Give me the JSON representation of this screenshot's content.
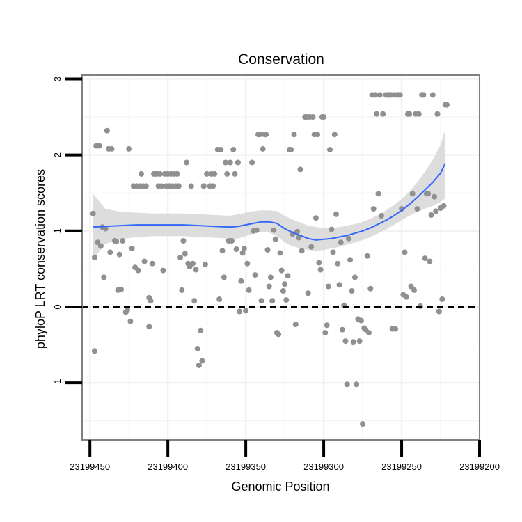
{
  "chart_data": {
    "type": "scatter",
    "title": "Conservation",
    "xlabel": "Genomic Position",
    "ylabel": "phyloP LRT conservation scores",
    "x_reversed": true,
    "xlim": [
      23199200,
      23199455
    ],
    "ylim": [
      -1.75,
      3.05
    ],
    "x_ticks": [
      23199450,
      23199400,
      23199350,
      23199300,
      23199250,
      23199200
    ],
    "x_tick_labels": [
      "23199450",
      "23199400",
      "23199350",
      "23199300",
      "23199250",
      "23199200"
    ],
    "y_ticks": [
      -1,
      0,
      1,
      2,
      3
    ],
    "y_tick_labels": [
      "-1",
      "0",
      "1",
      "2",
      "3"
    ],
    "grid": true,
    "reference_line": {
      "y": 0,
      "style": "dashed"
    },
    "colors": {
      "points": "#909090",
      "smooth_line": "#3366ff",
      "ribbon": "#d9d9d9",
      "panel_border": "#808080",
      "grid": "#f2f2f2"
    },
    "points": [
      {
        "x": 23199448,
        "y": 1.23
      },
      {
        "x": 23199447,
        "y": 0.65
      },
      {
        "x": 23199447,
        "y": -0.58
      },
      {
        "x": 23199446,
        "y": 2.12
      },
      {
        "x": 23199445,
        "y": 0.85
      },
      {
        "x": 23199444,
        "y": 2.12
      },
      {
        "x": 23199443,
        "y": 0.8
      },
      {
        "x": 23199442,
        "y": 1.05
      },
      {
        "x": 23199441,
        "y": 0.39
      },
      {
        "x": 23199440,
        "y": 1.03
      },
      {
        "x": 23199439,
        "y": 2.32
      },
      {
        "x": 23199438,
        "y": 2.08
      },
      {
        "x": 23199437,
        "y": 0.72
      },
      {
        "x": 23199436,
        "y": 2.08
      },
      {
        "x": 23199434,
        "y": 0.87
      },
      {
        "x": 23199433,
        "y": 0.86
      },
      {
        "x": 23199432,
        "y": 0.22
      },
      {
        "x": 23199431,
        "y": 0.69
      },
      {
        "x": 23199430,
        "y": 0.23
      },
      {
        "x": 23199429,
        "y": 0.87
      },
      {
        "x": 23199427,
        "y": -0.07
      },
      {
        "x": 23199426,
        "y": -0.04
      },
      {
        "x": 23199425,
        "y": 2.08
      },
      {
        "x": 23199424,
        "y": -0.19
      },
      {
        "x": 23199423,
        "y": 0.77
      },
      {
        "x": 23199422,
        "y": 1.59
      },
      {
        "x": 23199421,
        "y": 0.52
      },
      {
        "x": 23199420,
        "y": 1.59
      },
      {
        "x": 23199419,
        "y": 0.48
      },
      {
        "x": 23199418,
        "y": 1.59
      },
      {
        "x": 23199417,
        "y": 1.75
      },
      {
        "x": 23199416,
        "y": 1.59
      },
      {
        "x": 23199415,
        "y": 0.6
      },
      {
        "x": 23199414,
        "y": 1.59
      },
      {
        "x": 23199412,
        "y": -0.26
      },
      {
        "x": 23199412,
        "y": 0.12
      },
      {
        "x": 23199411,
        "y": 0.08
      },
      {
        "x": 23199410,
        "y": 0.57
      },
      {
        "x": 23199409,
        "y": 1.75
      },
      {
        "x": 23199408,
        "y": 1.75
      },
      {
        "x": 23199407,
        "y": 1.75
      },
      {
        "x": 23199406,
        "y": 1.59
      },
      {
        "x": 23199405,
        "y": 1.75
      },
      {
        "x": 23199404,
        "y": 1.59
      },
      {
        "x": 23199403,
        "y": 0.48
      },
      {
        "x": 23199402,
        "y": 1.75
      },
      {
        "x": 23199401,
        "y": 1.59
      },
      {
        "x": 23199400,
        "y": 1.75
      },
      {
        "x": 23199399,
        "y": 1.59
      },
      {
        "x": 23199398,
        "y": 1.75
      },
      {
        "x": 23199397,
        "y": 1.59
      },
      {
        "x": 23199396,
        "y": 1.75
      },
      {
        "x": 23199395,
        "y": 1.59
      },
      {
        "x": 23199394,
        "y": 1.75
      },
      {
        "x": 23199393,
        "y": 1.59
      },
      {
        "x": 23199392,
        "y": 0.65
      },
      {
        "x": 23199391,
        "y": 0.22
      },
      {
        "x": 23199390,
        "y": 0.87
      },
      {
        "x": 23199389,
        "y": 0.7
      },
      {
        "x": 23199388,
        "y": 1.9
      },
      {
        "x": 23199387,
        "y": 0.57
      },
      {
        "x": 23199386,
        "y": 0.53
      },
      {
        "x": 23199385,
        "y": 1.59
      },
      {
        "x": 23199384,
        "y": 0.57
      },
      {
        "x": 23199383,
        "y": 0.08
      },
      {
        "x": 23199382,
        "y": 0.49
      },
      {
        "x": 23199381,
        "y": -0.55
      },
      {
        "x": 23199380,
        "y": -0.77
      },
      {
        "x": 23199379,
        "y": -0.31
      },
      {
        "x": 23199378,
        "y": -0.71
      },
      {
        "x": 23199377,
        "y": 1.59
      },
      {
        "x": 23199376,
        "y": 0.56
      },
      {
        "x": 23199375,
        "y": 1.75
      },
      {
        "x": 23199373,
        "y": 1.59
      },
      {
        "x": 23199372,
        "y": 1.75
      },
      {
        "x": 23199371,
        "y": 1.59
      },
      {
        "x": 23199370,
        "y": 1.75
      },
      {
        "x": 23199368,
        "y": 2.07
      },
      {
        "x": 23199367,
        "y": 0.1
      },
      {
        "x": 23199366,
        "y": 2.07
      },
      {
        "x": 23199365,
        "y": 0.74
      },
      {
        "x": 23199364,
        "y": 0.39
      },
      {
        "x": 23199363,
        "y": 1.9
      },
      {
        "x": 23199362,
        "y": 1.75
      },
      {
        "x": 23199361,
        "y": 0.87
      },
      {
        "x": 23199360,
        "y": 1.9
      },
      {
        "x": 23199359,
        "y": 0.87
      },
      {
        "x": 23199358,
        "y": 2.07
      },
      {
        "x": 23199357,
        "y": 1.75
      },
      {
        "x": 23199356,
        "y": 0.76
      },
      {
        "x": 23199355,
        "y": 1.9
      },
      {
        "x": 23199354,
        "y": -0.06
      },
      {
        "x": 23199353,
        "y": 0.34
      },
      {
        "x": 23199352,
        "y": 0.71
      },
      {
        "x": 23199351,
        "y": 0.77
      },
      {
        "x": 23199350,
        "y": -0.05
      },
      {
        "x": 23199349,
        "y": 0.57
      },
      {
        "x": 23199348,
        "y": 0.22
      },
      {
        "x": 23199346,
        "y": 1.9
      },
      {
        "x": 23199345,
        "y": 1.0
      },
      {
        "x": 23199344,
        "y": 0.42
      },
      {
        "x": 23199343,
        "y": 1.01
      },
      {
        "x": 23199342,
        "y": 2.27
      },
      {
        "x": 23199341,
        "y": 2.27
      },
      {
        "x": 23199340,
        "y": 0.08
      },
      {
        "x": 23199339,
        "y": 2.08
      },
      {
        "x": 23199338,
        "y": 2.27
      },
      {
        "x": 23199337,
        "y": 2.27
      },
      {
        "x": 23199336,
        "y": 0.75
      },
      {
        "x": 23199335,
        "y": 0.27
      },
      {
        "x": 23199334,
        "y": 0.39
      },
      {
        "x": 23199333,
        "y": 0.08
      },
      {
        "x": 23199332,
        "y": 1.01
      },
      {
        "x": 23199331,
        "y": 0.89
      },
      {
        "x": 23199330,
        "y": -0.34
      },
      {
        "x": 23199329,
        "y": -0.36
      },
      {
        "x": 23199328,
        "y": 0.71
      },
      {
        "x": 23199327,
        "y": 0.48
      },
      {
        "x": 23199326,
        "y": 0.21
      },
      {
        "x": 23199325,
        "y": 0.3
      },
      {
        "x": 23199324,
        "y": 0.09
      },
      {
        "x": 23199323,
        "y": 0.41
      },
      {
        "x": 23199322,
        "y": 2.07
      },
      {
        "x": 23199321,
        "y": 2.07
      },
      {
        "x": 23199320,
        "y": 0.96
      },
      {
        "x": 23199319,
        "y": 2.27
      },
      {
        "x": 23199318,
        "y": -0.23
      },
      {
        "x": 23199317,
        "y": 0.99
      },
      {
        "x": 23199316,
        "y": 0.91
      },
      {
        "x": 23199315,
        "y": 1.81
      },
      {
        "x": 23199314,
        "y": 0.74
      },
      {
        "x": 23199312,
        "y": 2.5
      },
      {
        "x": 23199311,
        "y": 2.5
      },
      {
        "x": 23199310,
        "y": 0.18
      },
      {
        "x": 23199309,
        "y": 2.5
      },
      {
        "x": 23199308,
        "y": 0.79
      },
      {
        "x": 23199307,
        "y": 2.5
      },
      {
        "x": 23199306,
        "y": 2.27
      },
      {
        "x": 23199305,
        "y": 1.17
      },
      {
        "x": 23199304,
        "y": 2.27
      },
      {
        "x": 23199303,
        "y": 0.58
      },
      {
        "x": 23199302,
        "y": 0.49
      },
      {
        "x": 23199301,
        "y": 2.5
      },
      {
        "x": 23199300,
        "y": 2.5
      },
      {
        "x": 23199299,
        "y": -0.34
      },
      {
        "x": 23199298,
        "y": -0.24
      },
      {
        "x": 23199297,
        "y": 0.27
      },
      {
        "x": 23199296,
        "y": 2.07
      },
      {
        "x": 23199295,
        "y": 1.02
      },
      {
        "x": 23199294,
        "y": 0.72
      },
      {
        "x": 23199293,
        "y": 2.27
      },
      {
        "x": 23199292,
        "y": 1.22
      },
      {
        "x": 23199291,
        "y": 0.57
      },
      {
        "x": 23199290,
        "y": 0.29
      },
      {
        "x": 23199289,
        "y": 0.85
      },
      {
        "x": 23199288,
        "y": -0.3
      },
      {
        "x": 23199287,
        "y": 0.02
      },
      {
        "x": 23199286,
        "y": -0.45
      },
      {
        "x": 23199285,
        "y": -1.02
      },
      {
        "x": 23199284,
        "y": 0.9
      },
      {
        "x": 23199283,
        "y": 0.62
      },
      {
        "x": 23199282,
        "y": 0.21
      },
      {
        "x": 23199281,
        "y": -0.46
      },
      {
        "x": 23199280,
        "y": 0.39
      },
      {
        "x": 23199279,
        "y": -1.02
      },
      {
        "x": 23199278,
        "y": -0.16
      },
      {
        "x": 23199277,
        "y": -0.45
      },
      {
        "x": 23199276,
        "y": -0.18
      },
      {
        "x": 23199275,
        "y": -1.54
      },
      {
        "x": 23199274,
        "y": -0.28
      },
      {
        "x": 23199273,
        "y": -0.3
      },
      {
        "x": 23199272,
        "y": 0.67
      },
      {
        "x": 23199271,
        "y": -0.34
      },
      {
        "x": 23199270,
        "y": 0.24
      },
      {
        "x": 23199269,
        "y": 2.79
      },
      {
        "x": 23199268,
        "y": 1.29
      },
      {
        "x": 23199267,
        "y": 2.79
      },
      {
        "x": 23199266,
        "y": 2.54
      },
      {
        "x": 23199265,
        "y": 1.49
      },
      {
        "x": 23199264,
        "y": 2.79
      },
      {
        "x": 23199263,
        "y": 1.2
      },
      {
        "x": 23199262,
        "y": 2.54
      },
      {
        "x": 23199260,
        "y": 2.79
      },
      {
        "x": 23199259,
        "y": 2.79
      },
      {
        "x": 23199258,
        "y": 2.79
      },
      {
        "x": 23199257,
        "y": 2.79
      },
      {
        "x": 23199256,
        "y": -0.29
      },
      {
        "x": 23199255,
        "y": 2.79
      },
      {
        "x": 23199254,
        "y": -0.29
      },
      {
        "x": 23199253,
        "y": 2.79
      },
      {
        "x": 23199252,
        "y": 2.79
      },
      {
        "x": 23199251,
        "y": 2.79
      },
      {
        "x": 23199250,
        "y": 1.29
      },
      {
        "x": 23199249,
        "y": 0.16
      },
      {
        "x": 23199248,
        "y": 0.72
      },
      {
        "x": 23199247,
        "y": 0.13
      },
      {
        "x": 23199246,
        "y": 2.54
      },
      {
        "x": 23199245,
        "y": 2.54
      },
      {
        "x": 23199244,
        "y": 0.27
      },
      {
        "x": 23199243,
        "y": 1.49
      },
      {
        "x": 23199242,
        "y": 0.22
      },
      {
        "x": 23199241,
        "y": 2.54
      },
      {
        "x": 23199240,
        "y": 1.29
      },
      {
        "x": 23199239,
        "y": 2.54
      },
      {
        "x": 23199238,
        "y": 0.01
      },
      {
        "x": 23199237,
        "y": 2.79
      },
      {
        "x": 23199236,
        "y": 2.79
      },
      {
        "x": 23199235,
        "y": 0.64
      },
      {
        "x": 23199234,
        "y": 1.49
      },
      {
        "x": 23199233,
        "y": 1.49
      },
      {
        "x": 23199232,
        "y": 0.6
      },
      {
        "x": 23199231,
        "y": 1.21
      },
      {
        "x": 23199230,
        "y": 2.79
      },
      {
        "x": 23199229,
        "y": 1.45
      },
      {
        "x": 23199228,
        "y": 1.26
      },
      {
        "x": 23199227,
        "y": 2.54
      },
      {
        "x": 23199226,
        "y": -0.06
      },
      {
        "x": 23199225,
        "y": 1.3
      },
      {
        "x": 23199224,
        "y": 0.1
      },
      {
        "x": 23199223,
        "y": 1.33
      },
      {
        "x": 23199222,
        "y": 2.66
      },
      {
        "x": 23199221,
        "y": 2.66
      }
    ],
    "smooth_fit": {
      "x": [
        23199448,
        23199440,
        23199430,
        23199420,
        23199410,
        23199400,
        23199390,
        23199380,
        23199370,
        23199360,
        23199355,
        23199350,
        23199345,
        23199340,
        23199335,
        23199330,
        23199325,
        23199320,
        23199315,
        23199310,
        23199305,
        23199300,
        23199295,
        23199290,
        23199285,
        23199280,
        23199275,
        23199270,
        23199265,
        23199260,
        23199255,
        23199250,
        23199245,
        23199240,
        23199235,
        23199230,
        23199225,
        23199222
      ],
      "y": [
        1.05,
        1.06,
        1.07,
        1.08,
        1.08,
        1.08,
        1.08,
        1.07,
        1.06,
        1.05,
        1.06,
        1.08,
        1.1,
        1.12,
        1.12,
        1.1,
        1.03,
        0.98,
        0.94,
        0.9,
        0.88,
        0.89,
        0.9,
        0.92,
        0.94,
        0.97,
        1.0,
        1.04,
        1.09,
        1.14,
        1.2,
        1.27,
        1.35,
        1.44,
        1.54,
        1.64,
        1.76,
        1.89
      ],
      "lower": [
        0.63,
        0.83,
        0.89,
        0.92,
        0.93,
        0.93,
        0.93,
        0.92,
        0.91,
        0.9,
        0.9,
        0.93,
        0.97,
        0.99,
        0.98,
        0.93,
        0.85,
        0.8,
        0.77,
        0.75,
        0.74,
        0.75,
        0.77,
        0.79,
        0.82,
        0.85,
        0.88,
        0.92,
        0.97,
        1.02,
        1.08,
        1.14,
        1.2,
        1.25,
        1.29,
        1.33,
        1.38,
        1.43
      ],
      "upper": [
        1.49,
        1.29,
        1.25,
        1.24,
        1.23,
        1.23,
        1.23,
        1.22,
        1.21,
        1.2,
        1.22,
        1.24,
        1.26,
        1.27,
        1.27,
        1.26,
        1.2,
        1.15,
        1.11,
        1.07,
        1.05,
        1.04,
        1.04,
        1.05,
        1.07,
        1.09,
        1.12,
        1.16,
        1.21,
        1.27,
        1.34,
        1.42,
        1.52,
        1.64,
        1.78,
        1.94,
        2.13,
        2.34
      ]
    }
  }
}
